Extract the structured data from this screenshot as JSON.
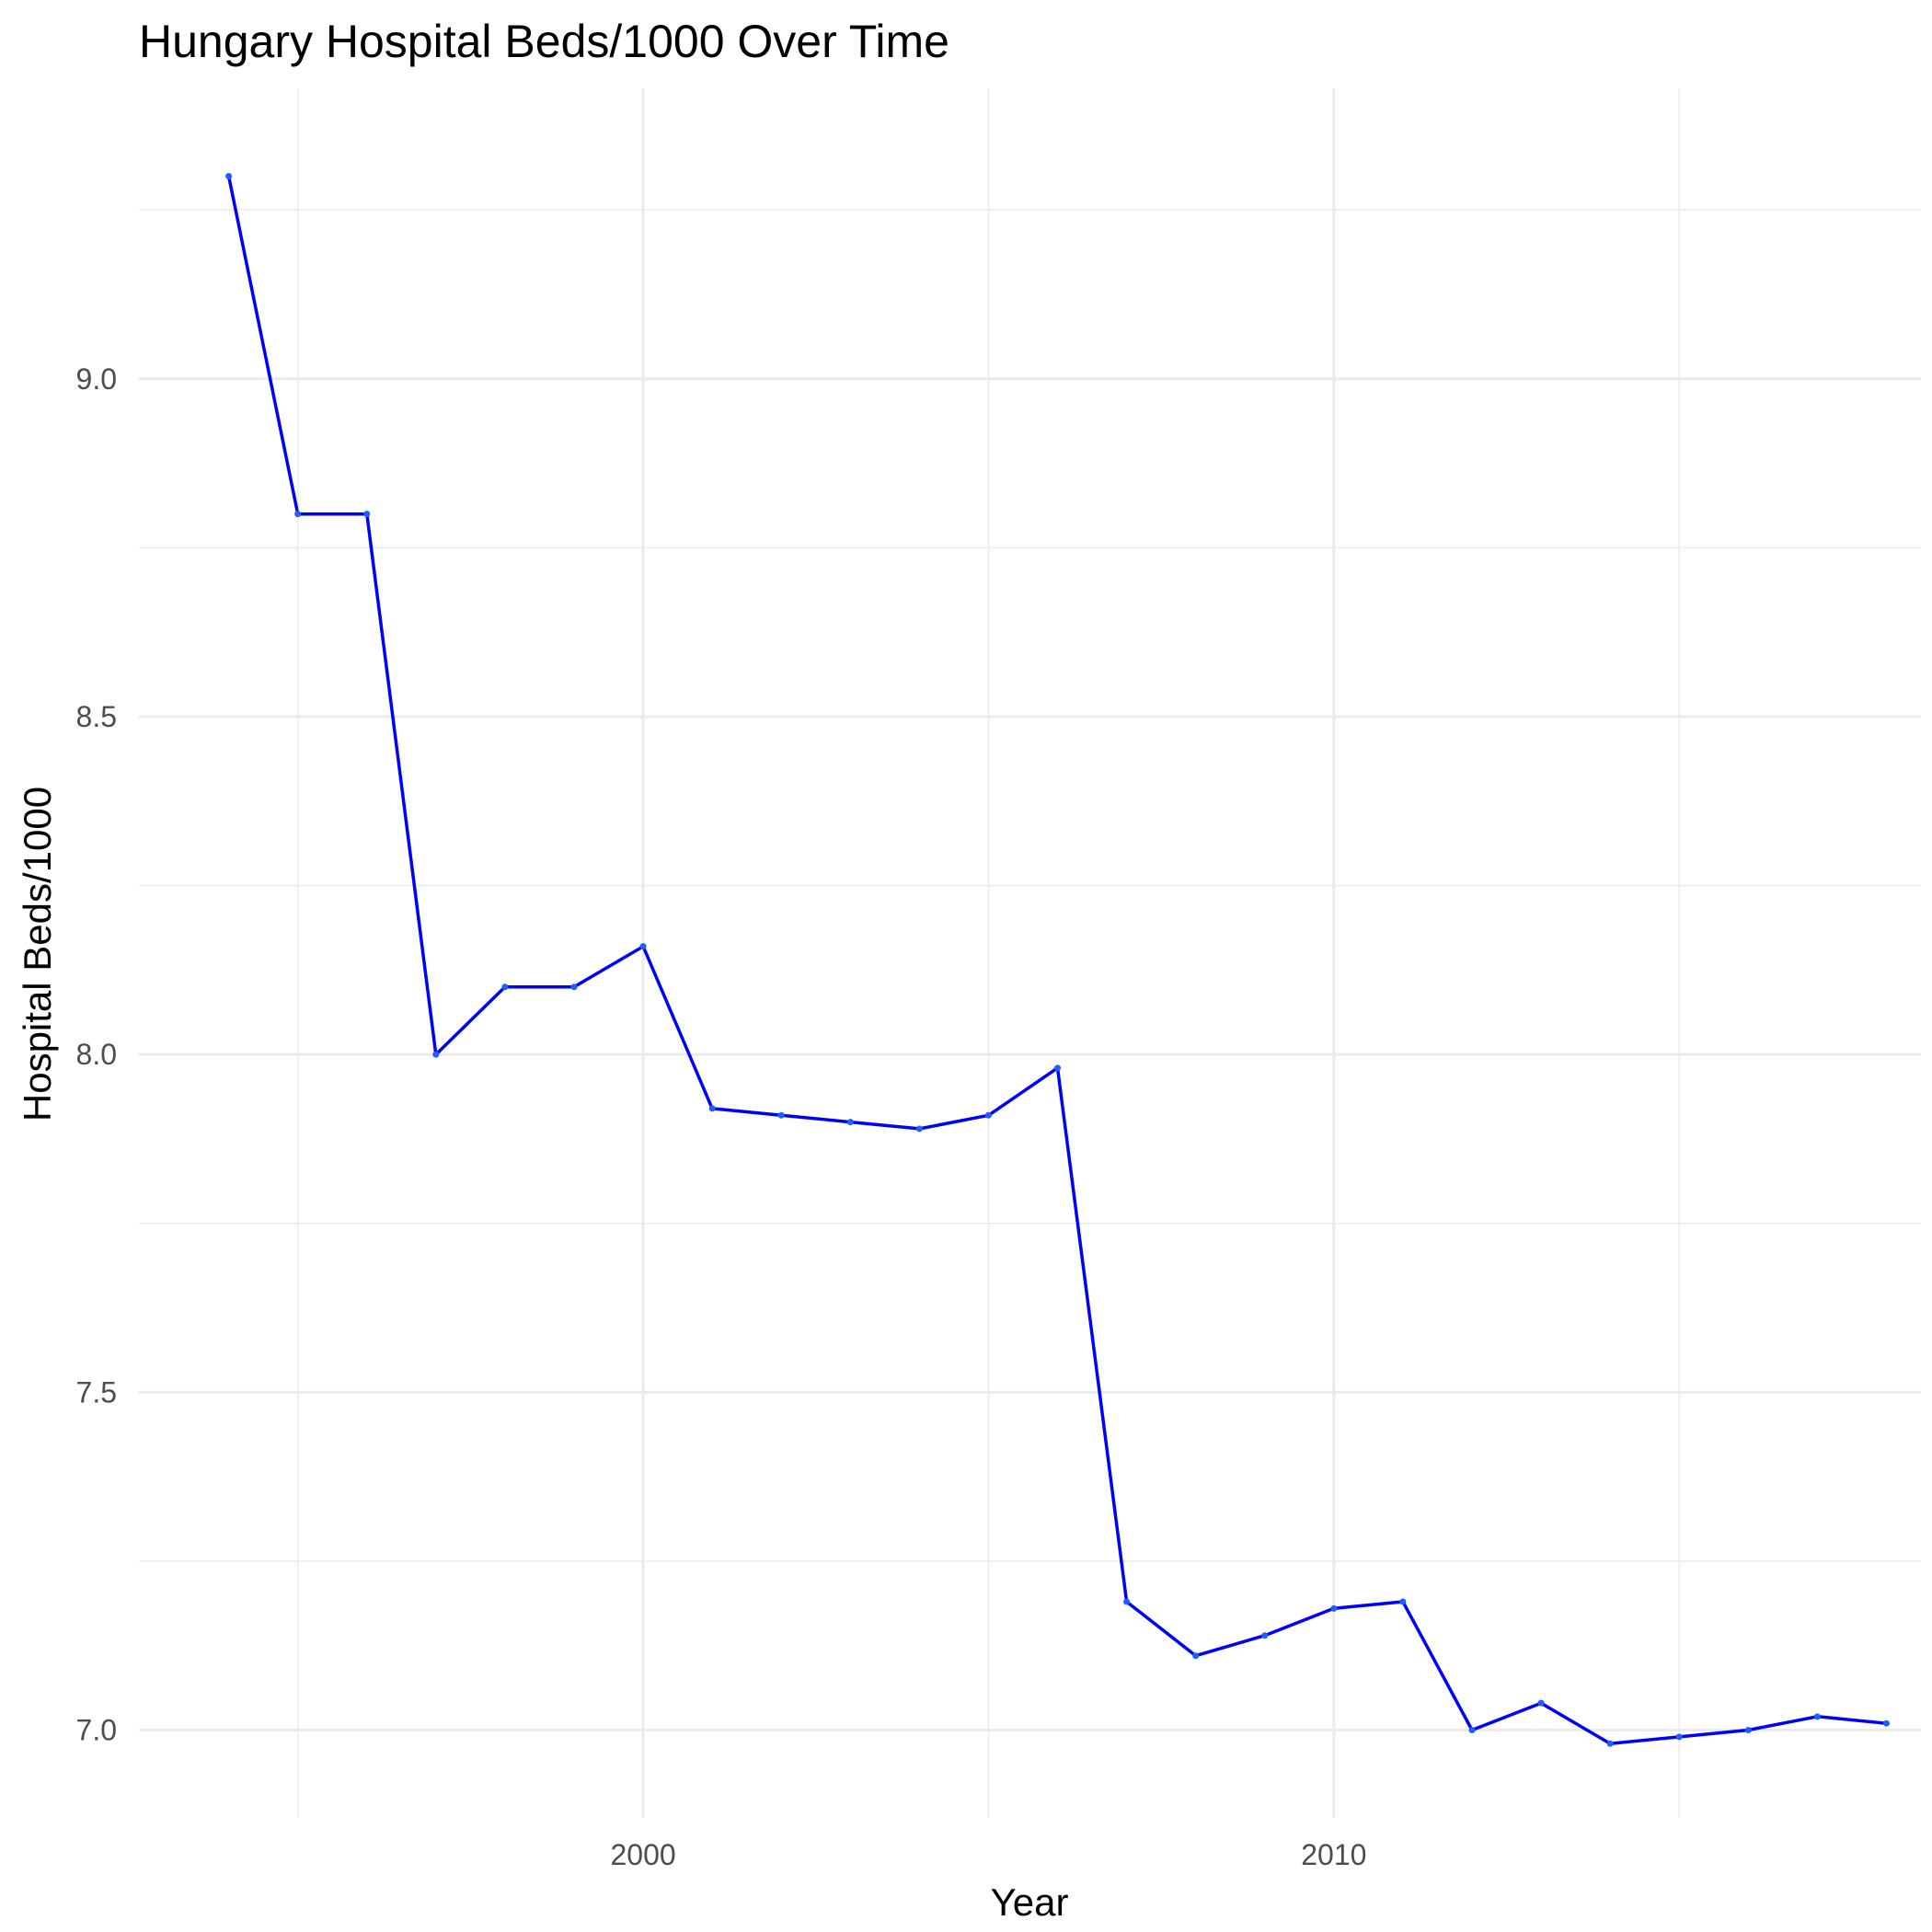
{
  "chart_data": {
    "type": "line",
    "title": "Hungary Hospital Beds/1000 Over Time",
    "xlabel": "Year",
    "ylabel": "Hospital Beds/1000",
    "x_ticks": [
      2000,
      2010
    ],
    "y_ticks": [
      "7.0",
      "7.5",
      "8.0",
      "8.5",
      "9.0"
    ],
    "xlim": [
      1992.7,
      2018.5
    ],
    "ylim": [
      6.87,
      9.43
    ],
    "grid": true,
    "legend": "none",
    "series": [
      {
        "color": "#0000ff",
        "x": [
          1994,
          1995,
          1996,
          1997,
          1998,
          1999,
          2000,
          2001,
          2002,
          2003,
          2004,
          2005,
          2006,
          2007,
          2008,
          2009,
          2010,
          2011,
          2012,
          2013,
          2014,
          2015,
          2016,
          2017,
          2018
        ],
        "y": [
          9.3,
          8.8,
          8.8,
          8.0,
          8.1,
          8.1,
          8.16,
          7.92,
          7.91,
          7.9,
          7.89,
          7.91,
          7.98,
          7.19,
          7.11,
          7.14,
          7.18,
          7.19,
          7.0,
          7.04,
          6.98,
          6.99,
          7.0,
          7.02,
          7.01
        ]
      }
    ]
  }
}
